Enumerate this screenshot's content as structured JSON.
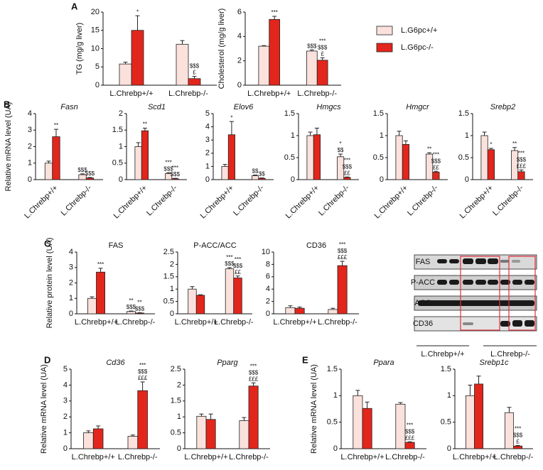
{
  "legend": {
    "position": "right",
    "items": [
      {
        "name": "L.G6pc+/+",
        "color": "#fbe1dc"
      },
      {
        "name": "L.G6pc-/-",
        "color": "#e2261c"
      }
    ]
  },
  "blot": {
    "rows": [
      "FAS",
      "P-ACC",
      "ACC",
      "CD36"
    ],
    "groups": [
      "L.Chrebp+/+",
      "L.Chrebp-/-"
    ]
  },
  "chart_data": [
    {
      "type": "bar",
      "panel": "A",
      "ylabel": "TG (mg/g liver)",
      "categories": [
        "L.Chrebp+/+",
        "L.Chrebp-/-"
      ],
      "ylim": [
        0,
        20
      ],
      "yticks": [
        0,
        5,
        10,
        15,
        20
      ],
      "series": [
        {
          "values": [
            5.8,
            11.2
          ],
          "errors": [
            0.5,
            1.0
          ],
          "annotations": [
            [],
            []
          ]
        },
        {
          "values": [
            15,
            1.8
          ],
          "errors": [
            4,
            0.6
          ],
          "annotations": [
            [
              "*"
            ],
            [
              "$$$",
              "£"
            ]
          ]
        }
      ]
    },
    {
      "type": "bar",
      "ylabel": "Cholesterol (mg/g liver)",
      "categories": [
        "L.Chrebp+/+",
        "L.Chrebp-/-"
      ],
      "ylim": [
        0,
        6
      ],
      "yticks": [
        0,
        2,
        4,
        6
      ],
      "series": [
        {
          "values": [
            3.2,
            2.8
          ],
          "errors": [
            0.05,
            0.1
          ],
          "annotations": [
            [],
            [
              "$$$"
            ]
          ]
        },
        {
          "values": [
            5.4,
            2.05
          ],
          "errors": [
            0.25,
            0.2
          ],
          "annotations": [
            [
              "***"
            ],
            [
              "***",
              "$$$",
              "£"
            ]
          ]
        }
      ]
    },
    {
      "type": "bar",
      "panel": "B",
      "title": "Fasn",
      "title_style": "italic",
      "ylabel": "Relative mRNA level (UA)",
      "categories": [
        "L.Chrebp+/+",
        "L.Chrebp-/-"
      ],
      "ylim": [
        0,
        4
      ],
      "yticks": [
        0,
        1,
        2,
        3,
        4
      ],
      "series": [
        {
          "values": [
            1.0,
            0.3
          ],
          "errors": [
            0.12,
            0.05
          ],
          "annotations": [
            [],
            [
              "$$$"
            ]
          ]
        },
        {
          "values": [
            2.6,
            0.1
          ],
          "errors": [
            0.45,
            0.03
          ],
          "annotations": [
            [
              "**"
            ],
            [
              "$$$"
            ]
          ]
        }
      ]
    },
    {
      "type": "bar",
      "title": "Scd1",
      "title_style": "italic",
      "categories": [
        "L.Chrebp+/+",
        "L.Chrebp-/-"
      ],
      "ylim": [
        0,
        2
      ],
      "yticks": [
        0,
        0.5,
        1,
        1.5,
        2
      ],
      "series": [
        {
          "values": [
            1.0,
            0.18
          ],
          "errors": [
            0.12,
            0.03
          ],
          "annotations": [
            [],
            [
              "***",
              "$$$"
            ]
          ]
        },
        {
          "values": [
            1.48,
            0.03
          ],
          "errors": [
            0.08,
            0.01
          ],
          "annotations": [
            [
              "**"
            ],
            [
              "***",
              "$$$"
            ]
          ]
        }
      ]
    },
    {
      "type": "bar",
      "title": "Elov6",
      "title_style": "italic",
      "categories": [
        "L.Chrebp+/+",
        "L.Chrebp-/-"
      ],
      "ylim": [
        0,
        5
      ],
      "yticks": [
        0,
        1,
        2,
        3,
        4,
        5
      ],
      "series": [
        {
          "values": [
            1.0,
            0.3
          ],
          "errors": [
            0.15,
            0.05
          ],
          "annotations": [
            [],
            [
              "$$"
            ]
          ]
        },
        {
          "values": [
            3.4,
            0.1
          ],
          "errors": [
            1.0,
            0.03
          ],
          "annotations": [
            [
              "*"
            ],
            [
              "$$"
            ]
          ]
        }
      ]
    },
    {
      "type": "bar",
      "title": "Hmgcs",
      "title_style": "italic",
      "categories": [
        "L.Chrebp+/+",
        "L.Chrebp-/-"
      ],
      "ylim": [
        0,
        1.5
      ],
      "yticks": [
        0,
        0.5,
        1,
        1.5
      ],
      "series": [
        {
          "values": [
            1.0,
            0.52
          ],
          "errors": [
            0.08,
            0.06
          ],
          "annotations": [
            [],
            [
              "*",
              "$$"
            ]
          ]
        },
        {
          "values": [
            1.02,
            0.05
          ],
          "errors": [
            0.15,
            0.01
          ],
          "annotations": [
            [],
            [
              "***",
              "$$$",
              "££"
            ]
          ]
        }
      ]
    },
    {
      "type": "bar",
      "title": "Hmgcr",
      "title_style": "italic",
      "categories": [
        "L.Chrebp+/+",
        "L.Chrebp-/-"
      ],
      "ylim": [
        0,
        1.5
      ],
      "yticks": [
        0,
        0.5,
        1,
        1.5
      ],
      "series": [
        {
          "values": [
            1.0,
            0.58
          ],
          "errors": [
            0.1,
            0.03
          ],
          "annotations": [
            [],
            [
              "**"
            ]
          ]
        },
        {
          "values": [
            0.8,
            0.17
          ],
          "errors": [
            0.08,
            0.02
          ],
          "annotations": [
            [],
            [
              "***",
              "$$$",
              "££"
            ]
          ]
        }
      ]
    },
    {
      "type": "bar",
      "title": "Srebp2",
      "title_style": "italic",
      "categories": [
        "L.Chrebp+/+",
        "L.Chrebp-/-"
      ],
      "ylim": [
        0,
        1.5
      ],
      "yticks": [
        0,
        0.5,
        1,
        1.5
      ],
      "series": [
        {
          "values": [
            1.0,
            0.66
          ],
          "errors": [
            0.08,
            0.07
          ],
          "annotations": [
            [],
            [
              "**"
            ]
          ]
        },
        {
          "values": [
            0.68,
            0.18
          ],
          "errors": [
            0.03,
            0.04
          ],
          "annotations": [
            [
              "*"
            ],
            [
              "***",
              "$$$",
              "£££"
            ]
          ]
        }
      ]
    },
    {
      "type": "bar",
      "panel": "C",
      "title": "FAS",
      "ylabel": "Relative protein level (UA)",
      "categories": [
        "L.Chrebp+/+",
        "L.Chrebp-/-"
      ],
      "ylim": [
        0,
        4
      ],
      "yticks": [
        0,
        1,
        2,
        3,
        4
      ],
      "series": [
        {
          "values": [
            1.0,
            0.15
          ],
          "errors": [
            0.1,
            0.03
          ],
          "annotations": [
            [],
            [
              "**",
              "$$$"
            ]
          ]
        },
        {
          "values": [
            2.7,
            0.05
          ],
          "errors": [
            0.25,
            0.02
          ],
          "annotations": [
            [
              "***"
            ],
            [
              "**",
              "$$$"
            ]
          ]
        }
      ]
    },
    {
      "type": "bar",
      "title": "P-ACC/ACC",
      "categories": [
        "L.Chrebp+/+",
        "L.Chrebp-/-"
      ],
      "ylim": [
        0,
        2.5
      ],
      "yticks": [
        0,
        0.5,
        1,
        1.5,
        2,
        2.5
      ],
      "series": [
        {
          "values": [
            1.0,
            1.82
          ],
          "errors": [
            0.1,
            0.05
          ],
          "annotations": [
            [],
            [
              "***",
              "$$$"
            ]
          ]
        },
        {
          "values": [
            0.75,
            1.45
          ],
          "errors": [
            0.02,
            0.08
          ],
          "annotations": [
            [],
            [
              "***",
              "$$$",
              "££"
            ]
          ]
        }
      ]
    },
    {
      "type": "bar",
      "title": "CD36",
      "categories": [
        "L.Chrebp+/+",
        "L.Chrebp-/-"
      ],
      "ylim": [
        0,
        10
      ],
      "yticks": [
        0,
        2,
        4,
        6,
        8,
        10
      ],
      "series": [
        {
          "values": [
            1.0,
            0.7
          ],
          "errors": [
            0.3,
            0.2
          ],
          "annotations": [
            [],
            []
          ]
        },
        {
          "values": [
            0.9,
            7.8
          ],
          "errors": [
            0.2,
            0.7
          ],
          "annotations": [
            [],
            [
              "***",
              "$$$",
              "£££"
            ]
          ]
        }
      ]
    },
    {
      "type": "bar",
      "panel": "D",
      "title": "Cd36",
      "title_style": "italic",
      "ylabel": "Relative mRNA level (UA)",
      "categories": [
        "L.Chrebp+/+",
        "L.Chrebp-/-"
      ],
      "ylim": [
        0,
        5
      ],
      "yticks": [
        0,
        1,
        2,
        3,
        4,
        5
      ],
      "series": [
        {
          "values": [
            1.0,
            0.78
          ],
          "errors": [
            0.12,
            0.08
          ],
          "annotations": [
            [],
            []
          ]
        },
        {
          "values": [
            1.25,
            3.65
          ],
          "errors": [
            0.18,
            0.55
          ],
          "annotations": [
            [],
            [
              "***",
              "$$$",
              "£££"
            ]
          ]
        }
      ]
    },
    {
      "type": "bar",
      "title": "Pparg",
      "title_style": "italic",
      "categories": [
        "L.Chrebp+/+",
        "L.Chrebp-/-"
      ],
      "ylim": [
        0,
        2.5
      ],
      "yticks": [
        0,
        0.5,
        1,
        1.5,
        2,
        2.5
      ],
      "series": [
        {
          "values": [
            1.02,
            0.88
          ],
          "errors": [
            0.07,
            0.1
          ],
          "annotations": [
            [],
            []
          ]
        },
        {
          "values": [
            0.92,
            1.97
          ],
          "errors": [
            0.17,
            0.1
          ],
          "annotations": [
            [],
            [
              "***",
              "$$$",
              "£££"
            ]
          ]
        }
      ]
    },
    {
      "type": "bar",
      "panel": "E",
      "title": "Ppara",
      "title_style": "italic",
      "ylabel": "Relative mRNA level (UA)",
      "categories": [
        "L.Chrebp+/+",
        "L.Chrebp-/-"
      ],
      "ylim": [
        0,
        1.5
      ],
      "yticks": [
        0,
        0.5,
        1,
        1.5
      ],
      "series": [
        {
          "values": [
            1.0,
            0.84
          ],
          "errors": [
            0.1,
            0.03
          ],
          "annotations": [
            [],
            []
          ]
        },
        {
          "values": [
            0.76,
            0.12
          ],
          "errors": [
            0.12,
            0.01
          ],
          "annotations": [
            [],
            [
              "***",
              "$$$",
              "£££"
            ]
          ]
        }
      ]
    },
    {
      "type": "bar",
      "title": "Srebp1c",
      "title_style": "italic",
      "categories": [
        "L.Chrebp+/+",
        "L.Chrebp-/-"
      ],
      "ylim": [
        0,
        1.5
      ],
      "yticks": [
        0,
        0.5,
        1,
        1.5
      ],
      "series": [
        {
          "values": [
            1.0,
            0.68
          ],
          "errors": [
            0.2,
            0.1
          ],
          "annotations": [
            [],
            []
          ]
        },
        {
          "values": [
            1.22,
            0.05
          ],
          "errors": [
            0.15,
            0.01
          ],
          "annotations": [
            [],
            [
              "***",
              "$$$",
              "£"
            ]
          ]
        }
      ]
    }
  ]
}
